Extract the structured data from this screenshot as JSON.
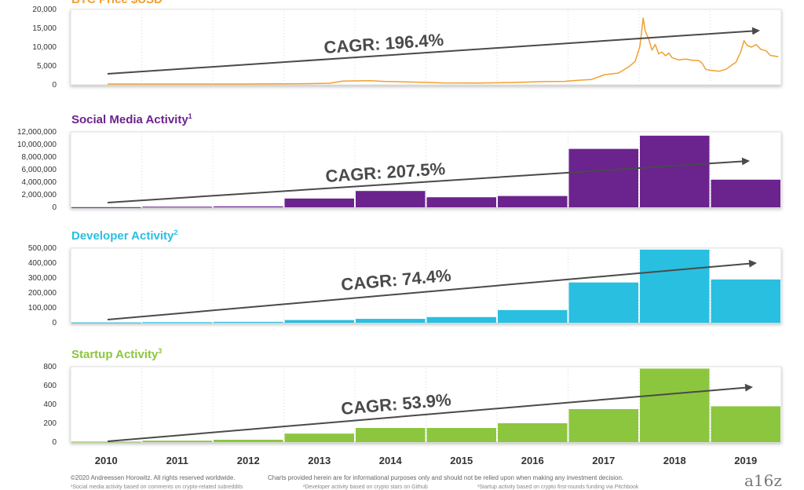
{
  "footer": {
    "copyright": "©2020 Andreessen Horowitz. All rights reserved worldwide.",
    "disclaimer": "Charts provided herein are for informational purposes only and should not be relied upon when making any investment decision.",
    "notes": [
      "¹Social media activity based on comments on crypto-related subreddits",
      "²Developer activity based on crypto stars on Github",
      "³Startup activity based on crypto first-rounds funding via Pitchbook"
    ]
  },
  "logo": "a16z",
  "chart_data": [
    {
      "type": "line",
      "title": "BTC Price $USD",
      "color": "#f0a030",
      "ylim": [
        0,
        20000
      ],
      "yticks": [
        "0",
        "5,000",
        "10,000",
        "15,000",
        "20,000"
      ],
      "ytick_values": [
        0,
        5000,
        10000,
        15000,
        20000
      ],
      "annotation": "CAGR: 196.4%",
      "x": [
        2010.0,
        2011.0,
        2012.0,
        2013.0,
        2013.3,
        2013.5,
        2013.9,
        2014.1,
        2014.5,
        2015.0,
        2015.5,
        2016.0,
        2016.5,
        2016.8,
        2017.0,
        2017.2,
        2017.4,
        2017.6,
        2017.75,
        2017.85,
        2017.92,
        2017.97,
        2018.0,
        2018.05,
        2018.1,
        2018.15,
        2018.2,
        2018.25,
        2018.3,
        2018.35,
        2018.4,
        2018.5,
        2018.6,
        2018.7,
        2018.8,
        2018.85,
        2018.9,
        2018.95,
        2019.0,
        2019.1,
        2019.2,
        2019.3,
        2019.35,
        2019.42,
        2019.47,
        2019.52,
        2019.58,
        2019.65,
        2019.72,
        2019.8,
        2019.86,
        2019.93,
        2019.98
      ],
      "y": [
        0,
        5,
        10,
        100,
        200,
        800,
        900,
        700,
        550,
        300,
        250,
        400,
        650,
        700,
        1000,
        1200,
        2500,
        2900,
        4500,
        6000,
        10000,
        17500,
        14000,
        12000,
        9000,
        10500,
        8000,
        8500,
        7500,
        8200,
        7000,
        6400,
        6600,
        6300,
        6200,
        5400,
        3900,
        3700,
        3600,
        3400,
        3900,
        5200,
        5800,
        8500,
        11500,
        10200,
        9800,
        10500,
        9200,
        8800,
        7600,
        7400,
        7200
      ]
    },
    {
      "type": "bar",
      "title": "Social Media Activity",
      "title_sup": "1",
      "color": "#6b238e",
      "ylim": [
        0,
        12000000
      ],
      "yticks": [
        "0",
        "2,000,000",
        "4,000,000",
        "6,000,000",
        "8,000,000",
        "10,000,000",
        "12,000,000"
      ],
      "ytick_values": [
        0,
        2000000,
        4000000,
        6000000,
        8000000,
        10000000,
        12000000
      ],
      "annotation": "CAGR: 207.5%",
      "categories": [
        "2010",
        "2011",
        "2012",
        "2013",
        "2014",
        "2015",
        "2016",
        "2017",
        "2018",
        "2019"
      ],
      "values": [
        20000,
        100000,
        150000,
        1400000,
        2600000,
        1600000,
        1800000,
        9300000,
        11400000,
        4400000
      ]
    },
    {
      "type": "bar",
      "title": "Developer Activity",
      "title_sup": "2",
      "color": "#29bfe0",
      "ylim": [
        0,
        500000
      ],
      "yticks": [
        "0",
        "100,000",
        "200,000",
        "300,000",
        "400,000",
        "500,000"
      ],
      "ytick_values": [
        0,
        100000,
        200000,
        300000,
        400000,
        500000
      ],
      "annotation": "CAGR: 74.4%",
      "categories": [
        "2010",
        "2011",
        "2012",
        "2013",
        "2014",
        "2015",
        "2016",
        "2017",
        "2018",
        "2019"
      ],
      "values": [
        2000,
        4000,
        6000,
        18000,
        26000,
        38000,
        85000,
        270000,
        490000,
        290000
      ]
    },
    {
      "type": "bar",
      "title": "Startup Activity",
      "title_sup": "3",
      "color": "#8cc63f",
      "ylim": [
        0,
        800
      ],
      "yticks": [
        "0",
        "200",
        "400",
        "600",
        "800"
      ],
      "ytick_values": [
        0,
        200,
        400,
        600,
        800
      ],
      "annotation": "CAGR: 53.9%",
      "categories": [
        "2010",
        "2011",
        "2012",
        "2013",
        "2014",
        "2015",
        "2016",
        "2017",
        "2018",
        "2019"
      ],
      "values": [
        5,
        15,
        25,
        90,
        150,
        150,
        200,
        350,
        780,
        380
      ]
    }
  ]
}
